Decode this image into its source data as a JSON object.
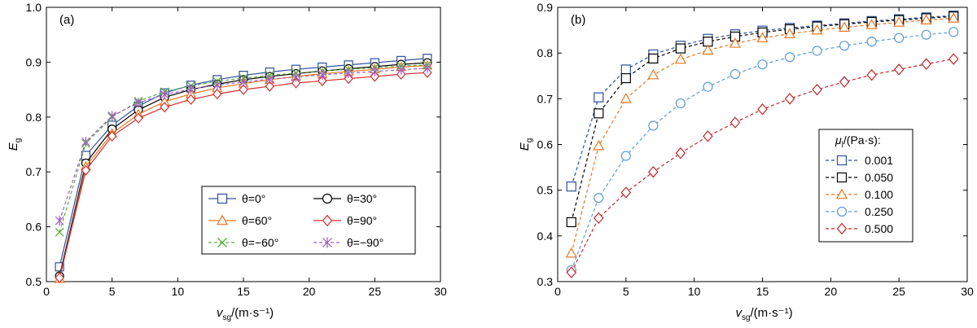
{
  "chart_data": [
    {
      "type": "line",
      "panel_label": "(a)",
      "xlabel": {
        "main": "v",
        "sub": "sg",
        "unit": "/(m·s⁻¹)"
      },
      "ylabel": {
        "main": "E",
        "sub": "g"
      },
      "xlim": [
        0,
        30
      ],
      "ylim": [
        0.5,
        1.0
      ],
      "xticks": [
        "0",
        "5",
        "10",
        "15",
        "20",
        "25",
        "30"
      ],
      "yticks": [
        "0.5",
        "0.6",
        "0.7",
        "0.8",
        "0.9",
        "1.0"
      ],
      "grid": false,
      "legend_placement": "lower-right (2 columns)",
      "x": [
        1,
        3,
        5,
        7,
        9,
        11,
        13,
        15,
        17,
        19,
        21,
        23,
        25,
        27,
        29
      ],
      "series": [
        {
          "name": "θ=0°",
          "color": "#2c4f9e",
          "marker": "square",
          "dash": "solid",
          "values": [
            0.527,
            0.73,
            0.785,
            0.82,
            0.844,
            0.858,
            0.868,
            0.876,
            0.882,
            0.887,
            0.891,
            0.895,
            0.899,
            0.903,
            0.907
          ]
        },
        {
          "name": "θ=30°",
          "color": "#000000",
          "marker": "circle",
          "dash": "solid",
          "values": [
            0.51,
            0.716,
            0.778,
            0.813,
            0.836,
            0.85,
            0.86,
            0.868,
            0.874,
            0.879,
            0.884,
            0.888,
            0.892,
            0.896,
            0.899
          ]
        },
        {
          "name": "θ=60°",
          "color": "#e87722",
          "marker": "triangle",
          "dash": "solid",
          "values": [
            0.505,
            0.71,
            0.77,
            0.805,
            0.828,
            0.842,
            0.853,
            0.861,
            0.868,
            0.874,
            0.879,
            0.883,
            0.887,
            0.891,
            0.894
          ]
        },
        {
          "name": "θ=90°",
          "color": "#d32f2f",
          "marker": "diamond",
          "dash": "solid",
          "values": [
            0.507,
            0.703,
            0.765,
            0.798,
            0.818,
            0.832,
            0.842,
            0.85,
            0.856,
            0.862,
            0.866,
            0.87,
            0.874,
            0.878,
            0.881
          ]
        },
        {
          "name": "θ=−60°",
          "color": "#5aad3c",
          "marker": "x",
          "dash": "dashed",
          "values": [
            0.59,
            0.752,
            0.8,
            0.829,
            0.846,
            0.857,
            0.865,
            0.871,
            0.876,
            0.88,
            0.884,
            0.887,
            0.89,
            0.893,
            0.895
          ]
        },
        {
          "name": "θ=−90°",
          "color": "#a05cc4",
          "marker": "asterisk",
          "dash": "dashed",
          "values": [
            0.611,
            0.755,
            0.802,
            0.826,
            0.841,
            0.851,
            0.858,
            0.864,
            0.869,
            0.873,
            0.877,
            0.88,
            0.883,
            0.886,
            0.889
          ]
        }
      ]
    },
    {
      "type": "line",
      "panel_label": "(b)",
      "xlabel": {
        "main": "v",
        "sub": "sg",
        "unit": "/(m·s⁻¹)"
      },
      "ylabel": {
        "main": "E",
        "sub": "g"
      },
      "xlim": [
        0,
        30
      ],
      "ylim": [
        0.3,
        0.9
      ],
      "xticks": [
        "0",
        "5",
        "10",
        "15",
        "20",
        "25",
        "30"
      ],
      "yticks": [
        "0.3",
        "0.4",
        "0.5",
        "0.6",
        "0.7",
        "0.8",
        "0.9"
      ],
      "grid": false,
      "legend_placement": "lower-right",
      "legend_title": {
        "main": "μ",
        "sub": "l",
        "unit": "/(Pa·s):"
      },
      "x": [
        1,
        3,
        5,
        7,
        9,
        11,
        13,
        15,
        17,
        19,
        21,
        23,
        25,
        27,
        29
      ],
      "series": [
        {
          "name": "0.001",
          "color": "#2c4f9e",
          "marker": "square",
          "dash": "dashed",
          "values": [
            0.508,
            0.703,
            0.764,
            0.797,
            0.816,
            0.831,
            0.841,
            0.849,
            0.855,
            0.86,
            0.865,
            0.87,
            0.874,
            0.878,
            0.882
          ]
        },
        {
          "name": "0.050",
          "color": "#000000",
          "marker": "square",
          "dash": "dashed",
          "values": [
            0.43,
            0.668,
            0.745,
            0.788,
            0.81,
            0.825,
            0.836,
            0.845,
            0.852,
            0.858,
            0.863,
            0.868,
            0.872,
            0.876,
            0.88
          ]
        },
        {
          "name": "0.100",
          "color": "#e87722",
          "marker": "triangle",
          "dash": "dashed",
          "values": [
            0.362,
            0.597,
            0.7,
            0.752,
            0.786,
            0.806,
            0.821,
            0.833,
            0.842,
            0.85,
            0.856,
            0.862,
            0.867,
            0.872,
            0.876
          ]
        },
        {
          "name": "0.250",
          "color": "#5b9bd5",
          "marker": "circle",
          "dash": "dashed",
          "values": [
            0.325,
            0.483,
            0.575,
            0.641,
            0.69,
            0.726,
            0.754,
            0.775,
            0.791,
            0.805,
            0.816,
            0.825,
            0.833,
            0.84,
            0.846
          ]
        },
        {
          "name": "0.500",
          "color": "#c0272d",
          "marker": "diamond",
          "dash": "dashed",
          "values": [
            0.32,
            0.439,
            0.495,
            0.54,
            0.581,
            0.618,
            0.648,
            0.677,
            0.7,
            0.72,
            0.737,
            0.752,
            0.764,
            0.776,
            0.787
          ]
        }
      ]
    }
  ]
}
